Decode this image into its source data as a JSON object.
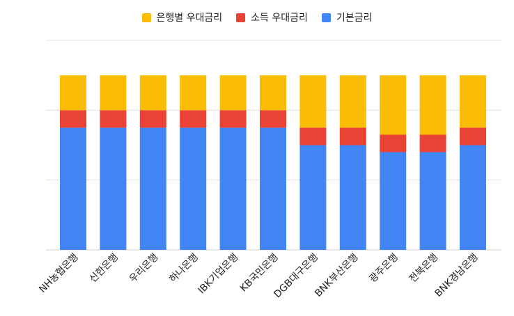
{
  "chart_data": {
    "type": "bar",
    "stacked": true,
    "categories": [
      "NH농협은행",
      "신한은행",
      "우리은행",
      "하나은행",
      "IBK기업은행",
      "KB국민은행",
      "DGB대구은행",
      "BNK부산은행",
      "광주은행",
      "전북은행",
      "BNK경남은행"
    ],
    "series": [
      {
        "name": "기본금리",
        "color": "#4285F4",
        "values": [
          3.5,
          3.5,
          3.5,
          3.5,
          3.5,
          3.5,
          3.0,
          3.0,
          2.8,
          2.8,
          3.0
        ]
      },
      {
        "name": "소득 우대금리",
        "color": "#EA4335",
        "values": [
          0.5,
          0.5,
          0.5,
          0.5,
          0.5,
          0.5,
          0.5,
          0.5,
          0.5,
          0.5,
          0.5
        ]
      },
      {
        "name": "은행별 우대금리",
        "color": "#FBBC04",
        "values": [
          1.0,
          1.0,
          1.0,
          1.0,
          1.0,
          1.0,
          1.5,
          1.5,
          1.7,
          1.7,
          1.5
        ]
      }
    ],
    "legend_order": [
      "은행별 우대금리",
      "소득 우대금리",
      "기본금리"
    ],
    "legend_position": "top",
    "ylim": [
      0,
      6
    ],
    "grid": true,
    "y_tick_labels_shown": false
  }
}
